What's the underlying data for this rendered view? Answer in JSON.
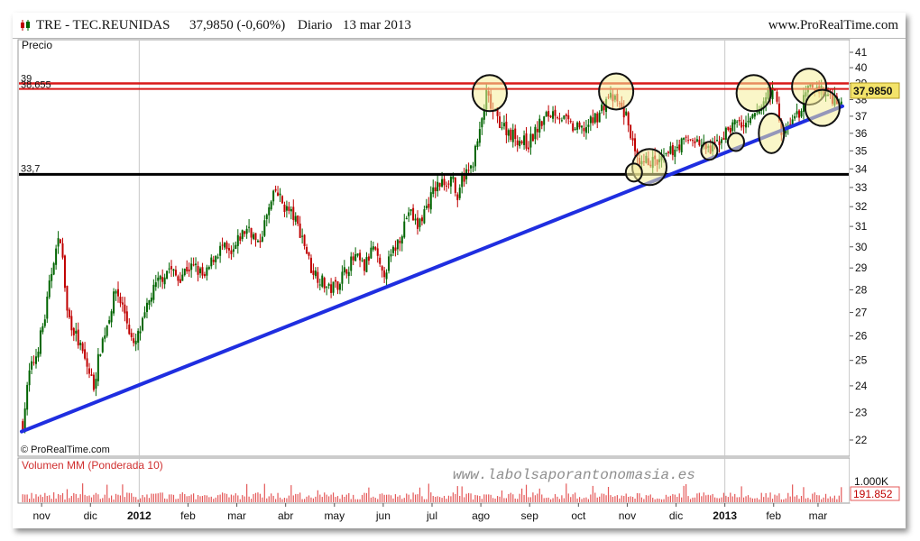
{
  "header": {
    "symbol": "TRE - TEC.REUNIDAS",
    "last": "37,9850 (-0,60%)",
    "period": "Diario",
    "date": "13 mar 2013",
    "brand": "www.ProRealTime.com"
  },
  "price_panel": {
    "label": "Precio",
    "copyright": "© ProRealTime.com",
    "last_badge": "37,9850"
  },
  "volume_panel": {
    "label": "Volumen MM (Ponderada 10)",
    "watermark": "www.labolsaporantonomasia.es",
    "axis_label": "1.000K",
    "last_badge": "191.852"
  },
  "colors": {
    "up": "#006400",
    "down": "#c00000",
    "trendline": "#1f2ee0",
    "resistance": "#d81818",
    "support": "#000000",
    "highlight_fill": "#f5ee9a",
    "volume": "#e45858",
    "badge": "#f3e36a"
  },
  "chart_data": {
    "type": "candlestick",
    "y_ticks": [
      22,
      23,
      24,
      25,
      26,
      27,
      28,
      29,
      30,
      31,
      32,
      33,
      34,
      35,
      36,
      37,
      38,
      39,
      40,
      41
    ],
    "ylim": [
      22,
      41
    ],
    "y_scale": "log",
    "x_labels": [
      "nov",
      "dic",
      "2012",
      "feb",
      "mar",
      "abr",
      "may",
      "jun",
      "jul",
      "ago",
      "sep",
      "oct",
      "nov",
      "dic",
      "2013",
      "feb",
      "mar"
    ],
    "x_label_slots": [
      9,
      31,
      53,
      75,
      97,
      119,
      141,
      163,
      185,
      207,
      229,
      251,
      273,
      295,
      317,
      339,
      359
    ],
    "bold_labels": [
      "2012",
      "2013"
    ],
    "slot_count": 370,
    "price_path": [
      [
        0,
        22.6
      ],
      [
        3,
        24.5
      ],
      [
        6,
        25.2
      ],
      [
        10,
        26.8
      ],
      [
        14,
        29.5
      ],
      [
        17,
        30.5
      ],
      [
        20,
        27
      ],
      [
        24,
        26
      ],
      [
        28,
        25
      ],
      [
        32,
        24
      ],
      [
        35,
        25.5
      ],
      [
        38,
        26.5
      ],
      [
        42,
        28
      ],
      [
        46,
        27
      ],
      [
        50,
        25.5
      ],
      [
        54,
        26.5
      ],
      [
        58,
        27.8
      ],
      [
        62,
        28.5
      ],
      [
        66,
        29
      ],
      [
        70,
        28.5
      ],
      [
        74,
        29
      ],
      [
        78,
        29
      ],
      [
        82,
        28.5
      ],
      [
        86,
        29.5
      ],
      [
        90,
        30
      ],
      [
        94,
        29.5
      ],
      [
        98,
        30.5
      ],
      [
        102,
        31
      ],
      [
        106,
        30
      ],
      [
        110,
        31.5
      ],
      [
        114,
        32.8
      ],
      [
        118,
        32
      ],
      [
        122,
        31.5
      ],
      [
        126,
        30.5
      ],
      [
        130,
        29
      ],
      [
        134,
        28.5
      ],
      [
        138,
        28
      ],
      [
        142,
        28.3
      ],
      [
        146,
        29
      ],
      [
        150,
        29.5
      ],
      [
        154,
        29
      ],
      [
        158,
        30
      ],
      [
        162,
        28.6
      ],
      [
        166,
        29.5
      ],
      [
        170,
        30.5
      ],
      [
        174,
        31.8
      ],
      [
        178,
        31
      ],
      [
        182,
        32
      ],
      [
        186,
        33
      ],
      [
        190,
        33.3
      ],
      [
        194,
        33.6
      ],
      [
        196,
        32
      ],
      [
        198,
        33.5
      ],
      [
        202,
        34
      ],
      [
        206,
        36
      ],
      [
        209,
        38.3
      ],
      [
        212,
        37.2
      ],
      [
        216,
        36.5
      ],
      [
        220,
        36
      ],
      [
        224,
        35.6
      ],
      [
        228,
        35.4
      ],
      [
        232,
        36.3
      ],
      [
        236,
        37
      ],
      [
        240,
        37.3
      ],
      [
        244,
        36.8
      ],
      [
        248,
        36.3
      ],
      [
        252,
        36.2
      ],
      [
        256,
        36.6
      ],
      [
        260,
        37.2
      ],
      [
        264,
        38.2
      ],
      [
        268,
        37.8
      ],
      [
        272,
        37
      ],
      [
        274,
        36
      ],
      [
        276,
        34.7
      ],
      [
        278,
        34
      ],
      [
        282,
        34.5
      ],
      [
        286,
        34.3
      ],
      [
        290,
        34.6
      ],
      [
        294,
        35.2
      ],
      [
        298,
        35.5
      ],
      [
        302,
        35.7
      ],
      [
        306,
        35.3
      ],
      [
        310,
        35
      ],
      [
        314,
        35.6
      ],
      [
        318,
        36.2
      ],
      [
        322,
        36.7
      ],
      [
        326,
        36.3
      ],
      [
        330,
        37
      ],
      [
        334,
        37.8
      ],
      [
        336,
        38.6
      ],
      [
        340,
        38.2
      ],
      [
        342,
        35.7
      ],
      [
        346,
        36.6
      ],
      [
        350,
        37.2
      ],
      [
        354,
        38.6
      ],
      [
        358,
        38.8
      ],
      [
        362,
        38.3
      ],
      [
        366,
        38.1
      ],
      [
        370,
        37.98
      ]
    ],
    "trendline": [
      [
        0,
        22.3
      ],
      [
        370,
        37.6
      ]
    ],
    "resistance": [
      39,
      38.655
    ],
    "resistance_labels": [
      "39",
      "38,655"
    ],
    "support": [
      33.7
    ],
    "support_labels": [
      "33,7"
    ],
    "highlights": [
      {
        "slot": 211,
        "price": 38.4,
        "size": "big"
      },
      {
        "slot": 268,
        "price": 38.5,
        "size": "big"
      },
      {
        "slot": 330,
        "price": 38.4,
        "size": "big"
      },
      {
        "slot": 355,
        "price": 38.8,
        "size": "big"
      },
      {
        "slot": 361,
        "price": 37.5,
        "size": "big"
      },
      {
        "slot": 283,
        "price": 34.1,
        "size": "big"
      },
      {
        "slot": 276,
        "price": 33.8,
        "size": "small"
      },
      {
        "slot": 310,
        "price": 35.0,
        "size": "small"
      },
      {
        "slot": 322,
        "price": 35.5,
        "size": "small"
      },
      {
        "slot": 338,
        "price": 36.0,
        "size": "tall"
      }
    ]
  }
}
